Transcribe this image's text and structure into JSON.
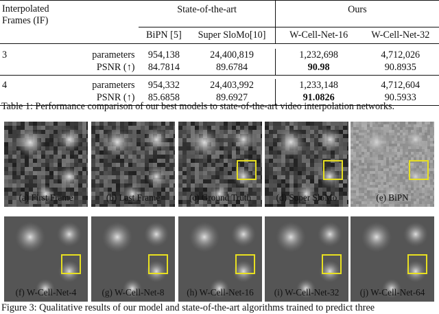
{
  "table": {
    "header_if": "Interpolated",
    "header_if2": "Frames (IF)",
    "header_sota": "State-of-the-art",
    "header_ours": "Ours",
    "methods": [
      "BiPN [5]",
      "Super SloMo[10]",
      "W-Cell-Net-16",
      "W-Cell-Net-32"
    ],
    "rows": [
      {
        "if": "3",
        "metric": "parameters",
        "values": [
          "954,138",
          "24,400,819",
          "1,232,698",
          "4,712,026"
        ]
      },
      {
        "if": "",
        "metric": "PSNR (↑)",
        "values": [
          "84.7814",
          "89.6784",
          "90.98",
          "90.8935"
        ]
      },
      {
        "if": "4",
        "metric": "parameters",
        "values": [
          "954,332",
          "24,403,992",
          "1,233,148",
          "4,712,604"
        ]
      },
      {
        "if": "",
        "metric": "PSNR (↑)",
        "values": [
          "85.6858",
          "89.6927",
          "91.0826",
          "90.5933"
        ]
      }
    ]
  },
  "table_caption": "Table 1: Performance comparison of our best models to state-of-the-art video interpolation networks.",
  "figure_labels_row1": [
    "(a) First Frame",
    "(b) Last Frame",
    "(c) Ground Truth",
    "(d) Super SloMo",
    "(e) BiPN"
  ],
  "figure_labels_row2": [
    "(f) W-Cell-Net-4",
    "(g) W-Cell-Net-8",
    "(h) W-Cell-Net-16",
    "(i) W-Cell-Net-32",
    "(j) W-Cell-Net-64"
  ],
  "figure_caption": "Figure 3: Qualitative results of our model and state-of-the-art algorithms trained to predict three",
  "colors": {
    "highlight_box": "#e8e020"
  }
}
